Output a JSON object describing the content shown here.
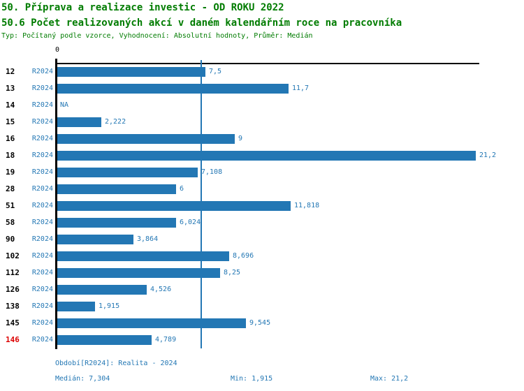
{
  "header": {
    "title_line1": "50. Příprava a realizace investic - OD ROKU 2022",
    "title_line2": "50.6 Počet realizovaných akcí v daném kalendářním roce na pracovníka",
    "subtitle": "Typ: Počítaný podle vzorce, Vyhodnocení: Absolutní hodnoty, Průměr: Medián"
  },
  "colors": {
    "title_green": "#007C00",
    "bar_blue": "#2377B4",
    "highlight_red": "#DC0000",
    "axis_black": "#000000"
  },
  "chart_data": {
    "type": "bar",
    "orientation": "horizontal",
    "title": "50.6 Počet realizovaných akcí v daném kalendářním roce na pracovníka",
    "axis": {
      "zero_label": "0",
      "x_min": 0,
      "x_max_scale": 21.37,
      "median_line_value": 7.304,
      "grid": false
    },
    "series_name": "R2024",
    "categories": [
      "12",
      "13",
      "14",
      "15",
      "16",
      "18",
      "19",
      "28",
      "51",
      "58",
      "90",
      "102",
      "112",
      "126",
      "138",
      "145",
      "146"
    ],
    "rows": [
      {
        "id": "12",
        "period": "R2024",
        "value": 7.5,
        "label": "7,5",
        "highlight": false
      },
      {
        "id": "13",
        "period": "R2024",
        "value": 11.7,
        "label": "11,7",
        "highlight": false
      },
      {
        "id": "14",
        "period": "R2024",
        "value": null,
        "label": "NA",
        "highlight": false
      },
      {
        "id": "15",
        "period": "R2024",
        "value": 2.222,
        "label": "2,222",
        "highlight": false
      },
      {
        "id": "16",
        "period": "R2024",
        "value": 9,
        "label": "9",
        "highlight": false
      },
      {
        "id": "18",
        "period": "R2024",
        "value": 21.2,
        "label": "21,2",
        "highlight": false
      },
      {
        "id": "19",
        "period": "R2024",
        "value": 7.108,
        "label": "7,108",
        "highlight": false
      },
      {
        "id": "28",
        "period": "R2024",
        "value": 6,
        "label": "6",
        "highlight": false
      },
      {
        "id": "51",
        "period": "R2024",
        "value": 11.818,
        "label": "11,818",
        "highlight": false
      },
      {
        "id": "58",
        "period": "R2024",
        "value": 6.024,
        "label": "6,024",
        "highlight": false
      },
      {
        "id": "90",
        "period": "R2024",
        "value": 3.864,
        "label": "3,864",
        "highlight": false
      },
      {
        "id": "102",
        "period": "R2024",
        "value": 8.696,
        "label": "8,696",
        "highlight": false
      },
      {
        "id": "112",
        "period": "R2024",
        "value": 8.25,
        "label": "8,25",
        "highlight": false
      },
      {
        "id": "126",
        "period": "R2024",
        "value": 4.526,
        "label": "4,526",
        "highlight": false
      },
      {
        "id": "138",
        "period": "R2024",
        "value": 1.915,
        "label": "1,915",
        "highlight": false
      },
      {
        "id": "145",
        "period": "R2024",
        "value": 9.545,
        "label": "9,545",
        "highlight": false
      },
      {
        "id": "146",
        "period": "R2024",
        "value": 4.789,
        "label": "4,789",
        "highlight": true
      }
    ]
  },
  "footer": {
    "period_caption": "Období[R2024]: Realita - 2024",
    "median_stat": "Medián: 7,304",
    "min_stat": "Min: 1,915",
    "max_stat": "Max: 21,2"
  }
}
